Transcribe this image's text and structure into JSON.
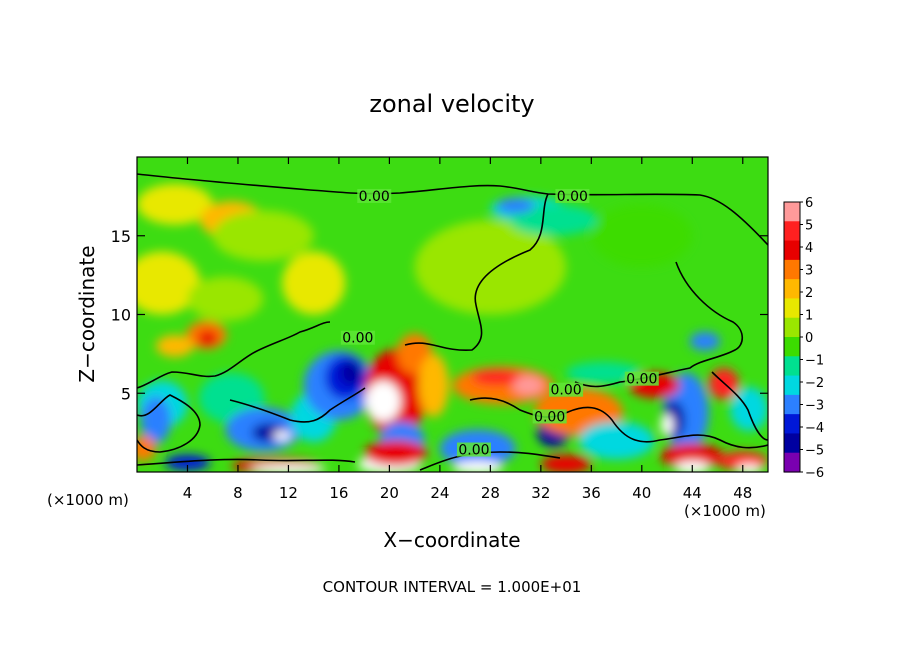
{
  "chart_data": {
    "type": "heatmap",
    "title": "zonal velocity",
    "xlabel": "X−coordinate",
    "ylabel": "Z−coordinate",
    "x_unit_left": "(×1000 m)",
    "x_unit_right": "(×1000 m)",
    "xlim": [
      0,
      50
    ],
    "ylim": [
      0,
      20
    ],
    "x_ticks": [
      4,
      8,
      12,
      16,
      20,
      24,
      28,
      32,
      36,
      40,
      44,
      48
    ],
    "y_ticks": [
      5,
      10,
      15
    ],
    "footer": "CONTOUR INTERVAL = 1.000E+01",
    "colorbar": {
      "levels": [
        6,
        5,
        4,
        3,
        2,
        1,
        0,
        -1,
        -2,
        -3,
        -4,
        -5,
        -6
      ],
      "level_labels": [
        "6",
        "5",
        "4",
        "3",
        "2",
        "1",
        "0",
        "−1",
        "−2",
        "−3",
        "−4",
        "−5",
        "−6"
      ],
      "colors": [
        "#ff9a9a",
        "#ff2020",
        "#e80000",
        "#ff7800",
        "#ffb800",
        "#e8e800",
        "#9ae600",
        "#3cdc00",
        "#00e090",
        "#00d8e0",
        "#2c80ff",
        "#0018d8",
        "#0000a0",
        "#7a00b0"
      ]
    },
    "contour_labels": [
      {
        "text": "0.00",
        "x": 18.8,
        "y": 17.4
      },
      {
        "text": "0.00",
        "x": 34.5,
        "y": 17.4
      },
      {
        "text": "0.00",
        "x": 17.5,
        "y": 8.4
      },
      {
        "text": "0.00",
        "x": 34.0,
        "y": 5.1
      },
      {
        "text": "0.00",
        "x": 32.7,
        "y": 3.4
      },
      {
        "text": "0.00",
        "x": 40.0,
        "y": 5.8
      },
      {
        "text": "0.00",
        "x": 26.7,
        "y": 1.3
      }
    ]
  }
}
